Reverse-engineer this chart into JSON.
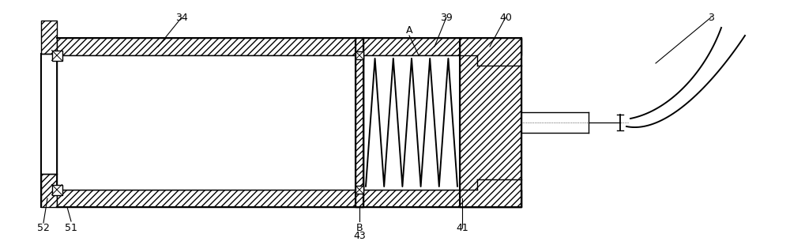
{
  "bg_color": "#ffffff",
  "line_color": "#000000",
  "fig_width": 10.0,
  "fig_height": 3.1,
  "dpi": 100
}
